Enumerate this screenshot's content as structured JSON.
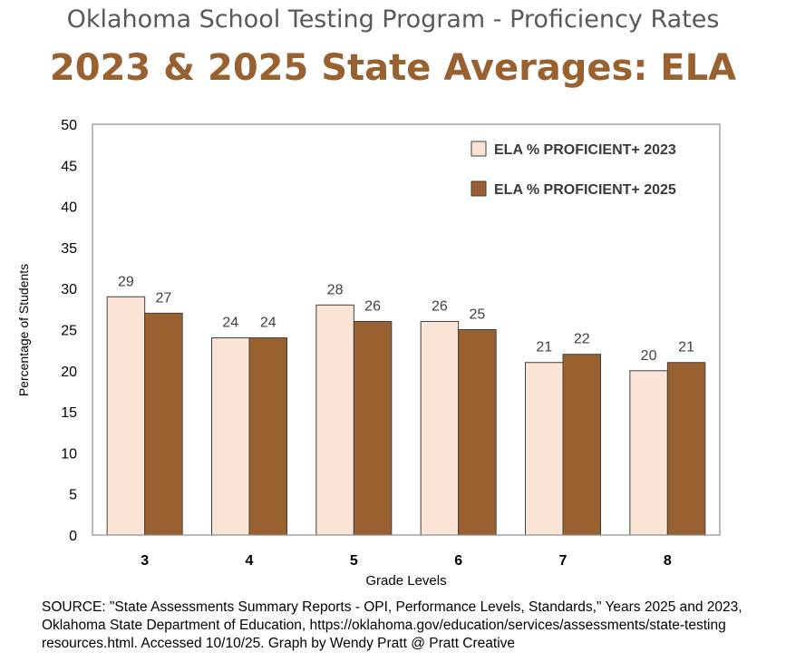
{
  "supertitle": "Oklahoma School Testing Program - Proficiency Rates",
  "chart_data": {
    "type": "bar",
    "title": "2023 & 2025 State Averages: ELA",
    "xlabel": "Grade Levels",
    "ylabel": "Percentage of Students",
    "categories": [
      "3",
      "4",
      "5",
      "6",
      "7",
      "8"
    ],
    "series": [
      {
        "name": "ELA % PROFICIENT+ 2023",
        "values": [
          29,
          24,
          28,
          26,
          21,
          20
        ],
        "color": "#fbe4d6"
      },
      {
        "name": "ELA % PROFICIENT+ 2025",
        "values": [
          27,
          24,
          26,
          25,
          22,
          21
        ],
        "color": "#9a6130"
      }
    ],
    "ylim": [
      0,
      50
    ],
    "yticks": [
      0,
      5,
      10,
      15,
      20,
      25,
      30,
      35,
      40,
      45,
      50
    ],
    "grid": false,
    "legend": "top-right"
  },
  "source_lines": [
    "SOURCE: \"State Assessments Summary Reports - OPI, Performance Levels, Standards,\" Years 2025 and 2023,",
    "Oklahoma State Department of Education, https://oklahoma.gov/education/services/assessments/state-testing",
    "resources.html. Accessed 10/10/25. Graph by Wendy Pratt @ Pratt Creative"
  ],
  "colors": {
    "bar_edge": "#404040",
    "title": "#9a6130",
    "supertitle": "#595959"
  }
}
